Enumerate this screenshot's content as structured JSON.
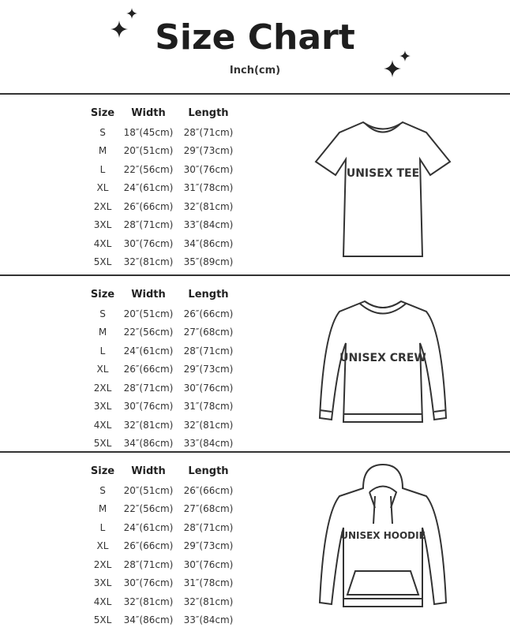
{
  "header": {
    "title": "Size Chart",
    "subtitle": "Inch(cm)"
  },
  "columns": {
    "size": "Size",
    "width": "Width",
    "length": "Length"
  },
  "sections": [
    {
      "label": "UNISEX TEE",
      "rows": [
        [
          "S",
          "18″(45cm)",
          "28″(71cm)"
        ],
        [
          "M",
          "20″(51cm)",
          "29″(73cm)"
        ],
        [
          "L",
          "22″(56cm)",
          "30″(76cm)"
        ],
        [
          "XL",
          "24″(61cm)",
          "31″(78cm)"
        ],
        [
          "2XL",
          "26″(66cm)",
          "32″(81cm)"
        ],
        [
          "3XL",
          "28″(71cm)",
          "33″(84cm)"
        ],
        [
          "4XL",
          "30″(76cm)",
          "34″(86cm)"
        ],
        [
          "5XL",
          "32″(81cm)",
          "35″(89cm)"
        ]
      ]
    },
    {
      "label": "UNISEX CREW",
      "rows": [
        [
          "S",
          "20″(51cm)",
          "26″(66cm)"
        ],
        [
          "M",
          "22″(56cm)",
          "27″(68cm)"
        ],
        [
          "L",
          "24″(61cm)",
          "28″(71cm)"
        ],
        [
          "XL",
          "26″(66cm)",
          "29″(73cm)"
        ],
        [
          "2XL",
          "28″(71cm)",
          "30″(76cm)"
        ],
        [
          "3XL",
          "30″(76cm)",
          "31″(78cm)"
        ],
        [
          "4XL",
          "32″(81cm)",
          "32″(81cm)"
        ],
        [
          "5XL",
          "34″(86cm)",
          "33″(84cm)"
        ]
      ]
    },
    {
      "label": "UNISEX HOODIE",
      "rows": [
        [
          "S",
          "20″(51cm)",
          "26″(66cm)"
        ],
        [
          "M",
          "22″(56cm)",
          "27″(68cm)"
        ],
        [
          "L",
          "24″(61cm)",
          "28″(71cm)"
        ],
        [
          "XL",
          "26″(66cm)",
          "29″(73cm)"
        ],
        [
          "2XL",
          "28″(71cm)",
          "30″(76cm)"
        ],
        [
          "3XL",
          "30″(76cm)",
          "31″(78cm)"
        ],
        [
          "4XL",
          "32″(81cm)",
          "32″(81cm)"
        ],
        [
          "5XL",
          "34″(86cm)",
          "33″(84cm)"
        ]
      ]
    }
  ]
}
